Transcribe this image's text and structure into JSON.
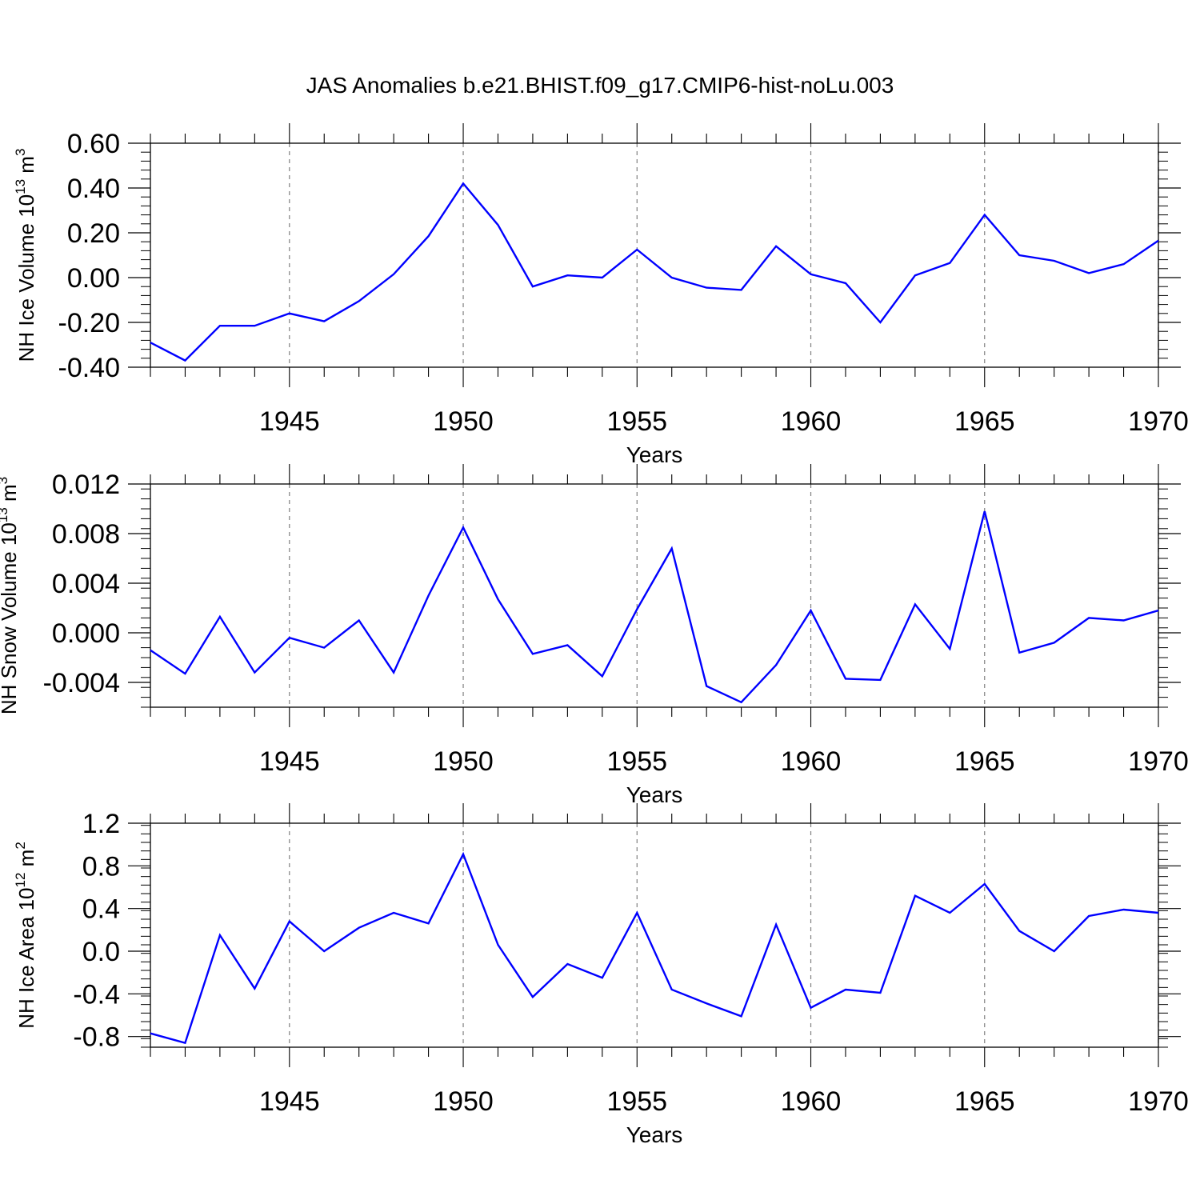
{
  "title": "JAS Anomalies b.e21.BHIST.f09_g17.CMIP6-hist-noLu.003",
  "colors": {
    "line": "#0000ff",
    "axis": "#000000",
    "grid": "#808080"
  },
  "chart_data": [
    {
      "type": "line",
      "ylabel_main": "NH Ice Volume 10",
      "ylabel_exp": "13",
      "ylabel_unit": " m",
      "ylabel_unit_exp": "3",
      "xlabel": "Years",
      "xlim": [
        1941,
        1970
      ],
      "ylim": [
        -0.4,
        0.6
      ],
      "yticks": [
        "0.60",
        "0.40",
        "0.20",
        "0.00",
        "-0.20",
        "-0.40"
      ],
      "ytick_values": [
        0.6,
        0.4,
        0.2,
        0.0,
        -0.2,
        -0.4
      ],
      "xticks": [
        "1945",
        "1950",
        "1955",
        "1960",
        "1965",
        "1970"
      ],
      "xtick_values": [
        1945,
        1950,
        1955,
        1960,
        1965,
        1970
      ],
      "grid": "vertical-dashed-at-major-x",
      "x": [
        1941,
        1942,
        1943,
        1944,
        1945,
        1946,
        1947,
        1948,
        1949,
        1950,
        1951,
        1952,
        1953,
        1954,
        1955,
        1956,
        1957,
        1958,
        1959,
        1960,
        1961,
        1962,
        1963,
        1964,
        1965,
        1966,
        1967,
        1968,
        1969,
        1970
      ],
      "values": [
        -0.29,
        -0.37,
        -0.215,
        -0.215,
        -0.16,
        -0.195,
        -0.105,
        0.015,
        0.185,
        0.42,
        0.235,
        -0.04,
        0.01,
        0.0,
        0.125,
        0.0,
        -0.045,
        -0.055,
        0.14,
        0.015,
        -0.025,
        -0.2,
        0.01,
        0.065,
        0.28,
        0.1,
        0.075,
        0.02,
        0.06,
        0.165
      ]
    },
    {
      "type": "line",
      "ylabel_main": "NH Snow Volume 10",
      "ylabel_exp": "13",
      "ylabel_unit": " m",
      "ylabel_unit_exp": "3",
      "xlabel": "Years",
      "xlim": [
        1941,
        1970
      ],
      "ylim": [
        -0.006,
        0.012
      ],
      "yticks": [
        "0.012",
        "0.008",
        "0.004",
        "0.000",
        "-0.004"
      ],
      "ytick_values": [
        0.012,
        0.008,
        0.004,
        0.0,
        -0.004
      ],
      "xticks": [
        "1945",
        "1950",
        "1955",
        "1960",
        "1965",
        "1970"
      ],
      "xtick_values": [
        1945,
        1950,
        1955,
        1960,
        1965,
        1970
      ],
      "grid": "vertical-dashed-at-major-x",
      "x": [
        1941,
        1942,
        1943,
        1944,
        1945,
        1946,
        1947,
        1948,
        1949,
        1950,
        1951,
        1952,
        1953,
        1954,
        1955,
        1956,
        1957,
        1958,
        1959,
        1960,
        1961,
        1962,
        1963,
        1964,
        1965,
        1966,
        1967,
        1968,
        1969,
        1970
      ],
      "values": [
        -0.0014,
        -0.0033,
        0.0013,
        -0.0032,
        -0.0004,
        -0.0012,
        0.001,
        -0.0032,
        0.003,
        0.0085,
        0.0027,
        -0.0017,
        -0.001,
        -0.0035,
        0.0019,
        0.0068,
        -0.0043,
        -0.0056,
        -0.0026,
        0.0018,
        -0.0037,
        -0.0038,
        0.0023,
        -0.0013,
        0.0098,
        -0.0016,
        -0.0008,
        0.0012,
        0.001,
        0.0018
      ]
    },
    {
      "type": "line",
      "ylabel_main": "NH Ice Area 10",
      "ylabel_exp": "12",
      "ylabel_unit": " m",
      "ylabel_unit_exp": "2",
      "xlabel": "Years",
      "xlim": [
        1941,
        1970
      ],
      "ylim": [
        -0.9,
        1.2
      ],
      "yticks": [
        "1.2",
        "0.8",
        "0.4",
        "0.0",
        "-0.4",
        "-0.8"
      ],
      "ytick_values": [
        1.2,
        0.8,
        0.4,
        0.0,
        -0.4,
        -0.8
      ],
      "xticks": [
        "1945",
        "1950",
        "1955",
        "1960",
        "1965",
        "1970"
      ],
      "xtick_values": [
        1945,
        1950,
        1955,
        1960,
        1965,
        1970
      ],
      "grid": "vertical-dashed-at-major-x",
      "x": [
        1941,
        1942,
        1943,
        1944,
        1945,
        1946,
        1947,
        1948,
        1949,
        1950,
        1951,
        1952,
        1953,
        1954,
        1955,
        1956,
        1957,
        1958,
        1959,
        1960,
        1961,
        1962,
        1963,
        1964,
        1965,
        1966,
        1967,
        1968,
        1969,
        1970
      ],
      "values": [
        -0.77,
        -0.86,
        0.15,
        -0.35,
        0.28,
        0.0,
        0.22,
        0.36,
        0.26,
        0.91,
        0.06,
        -0.43,
        -0.12,
        -0.25,
        0.36,
        -0.36,
        -0.49,
        -0.61,
        0.25,
        -0.53,
        -0.36,
        -0.39,
        0.52,
        0.36,
        0.63,
        0.19,
        0.0,
        0.33,
        0.39,
        0.36
      ]
    }
  ]
}
